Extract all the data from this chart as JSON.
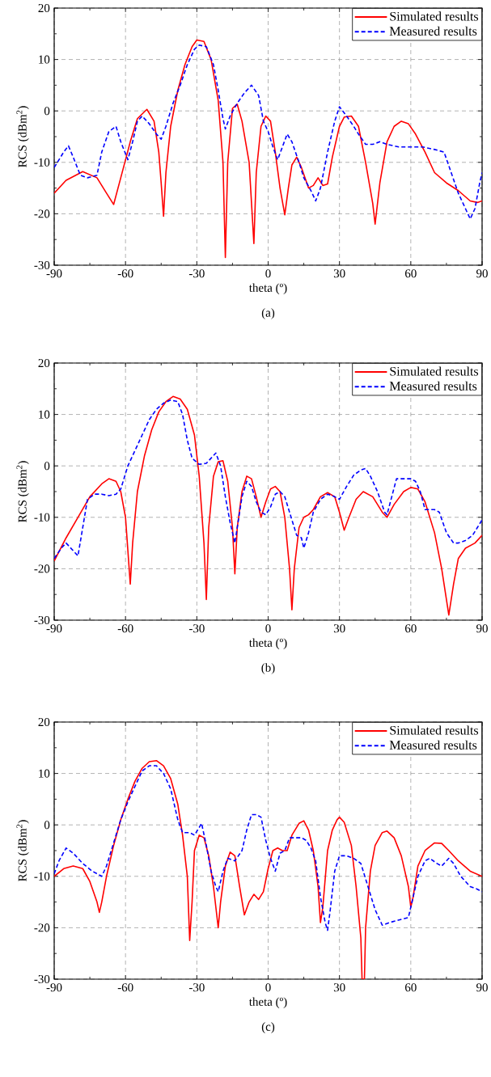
{
  "chart_data": [
    {
      "type": "line",
      "title": "(a)",
      "xlabel": "theta (º)",
      "ylabel": "RCS (dBm$^{2}$)",
      "xlim": [
        -90,
        90
      ],
      "ylim": [
        -30,
        20
      ],
      "xticks": [
        -90,
        -60,
        -30,
        0,
        30,
        60,
        90
      ],
      "yticks": [
        -30,
        -20,
        -10,
        0,
        10,
        20
      ],
      "grid": true,
      "legend": "top right",
      "series": [
        {
          "name": "Simulated results",
          "color": "#ff0000",
          "line_style": "solid",
          "x": [
            -90,
            -85,
            -78,
            -72,
            -68,
            -65,
            -62,
            -58,
            -55,
            -51,
            -48,
            -46,
            -45,
            -44,
            -43,
            -41,
            -38,
            -35,
            -32,
            -30,
            -27,
            -24,
            -21,
            -19,
            -18,
            -17,
            -15,
            -13,
            -11,
            -8,
            -6,
            -5,
            -3,
            -1,
            1,
            3,
            5,
            7,
            8.5,
            10,
            12,
            14,
            17,
            19,
            21,
            23,
            25,
            27,
            30,
            32,
            35,
            38,
            41,
            44,
            45,
            47,
            50,
            53,
            56,
            59,
            62,
            66,
            70,
            75,
            80,
            85,
            88,
            90
          ],
          "values": [
            -16,
            -13.5,
            -11.8,
            -13,
            -16,
            -18.2,
            -13,
            -6,
            -1.5,
            0.3,
            -2,
            -8,
            -14,
            -20.5,
            -12,
            -3,
            4,
            9,
            12.5,
            13.8,
            13.5,
            10,
            2,
            -10,
            -28.5,
            -10,
            0.5,
            1.3,
            -2,
            -10,
            -25.8,
            -12,
            -3,
            -1,
            -2,
            -8,
            -15,
            -20.2,
            -15,
            -10.5,
            -9,
            -11,
            -15,
            -14.5,
            -13,
            -14.5,
            -14.2,
            -9,
            -3,
            -1.2,
            -1,
            -3,
            -10,
            -18,
            -22,
            -14,
            -6,
            -3,
            -2,
            -2.5,
            -4.5,
            -8,
            -12,
            -14,
            -15.5,
            -17.5,
            -17.8,
            -17.5
          ]
        },
        {
          "name": "Measured results",
          "color": "#0000ff",
          "line_style": "dashed",
          "x": [
            -90,
            -86,
            -84,
            -82,
            -79,
            -76,
            -72,
            -70,
            -67,
            -64,
            -62,
            -59,
            -57,
            -55,
            -53,
            -50,
            -47,
            -45,
            -43,
            -40,
            -37,
            -34,
            -31,
            -29,
            -26,
            -23,
            -21,
            -19,
            -18,
            -16,
            -13,
            -10,
            -7,
            -4,
            -2,
            0,
            2,
            4,
            6,
            8,
            10,
            13,
            15,
            18,
            20,
            22,
            25,
            28,
            30,
            33,
            36,
            38,
            41,
            44,
            47,
            50,
            55,
            60,
            65,
            70,
            74,
            77,
            80,
            83,
            85,
            87,
            89,
            90
          ],
          "values": [
            -11,
            -8,
            -6.8,
            -9,
            -12.5,
            -13,
            -12.5,
            -8,
            -4,
            -3,
            -6,
            -9.5,
            -6,
            -2,
            -1,
            -2.5,
            -4.5,
            -5.5,
            -3,
            1.5,
            5,
            9,
            12,
            12.8,
            12.5,
            9,
            4,
            -1.5,
            -3.5,
            -1,
            1.5,
            3.5,
            5,
            3,
            -2,
            -4,
            -7,
            -9.5,
            -7,
            -4.5,
            -6,
            -10,
            -13,
            -15.5,
            -17.5,
            -15,
            -8,
            -2,
            0.8,
            -1,
            -3,
            -4.5,
            -6.5,
            -6.5,
            -6,
            -6.5,
            -7,
            -7,
            -7,
            -7.5,
            -8,
            -12,
            -16,
            -19,
            -21,
            -19,
            -14,
            -12
          ]
        }
      ]
    },
    {
      "type": "line",
      "title": "(b)",
      "xlabel": "theta (º)",
      "ylabel": "RCS (dBm$^{2}$)",
      "xlim": [
        -90,
        90
      ],
      "ylim": [
        -30,
        20
      ],
      "xticks": [
        -90,
        -60,
        -30,
        0,
        30,
        60,
        90
      ],
      "yticks": [
        -30,
        -20,
        -10,
        0,
        10,
        20
      ],
      "grid": true,
      "legend": "top right",
      "series": [
        {
          "name": "Simulated results",
          "color": "#ff0000",
          "line_style": "solid",
          "x": [
            -90,
            -85,
            -80,
            -75,
            -70,
            -67,
            -64,
            -62,
            -60,
            -58,
            -57,
            -55,
            -52,
            -49,
            -46,
            -43,
            -40,
            -37,
            -34,
            -31,
            -29,
            -27,
            -26,
            -25,
            -23,
            -21,
            -19,
            -17,
            -15,
            -14,
            -13,
            -11,
            -9,
            -7,
            -5,
            -3,
            -1,
            1,
            3,
            5,
            7,
            9,
            10,
            11,
            13,
            15,
            17,
            19,
            22,
            25,
            28,
            30,
            32,
            34,
            37,
            40,
            44,
            48,
            50,
            53,
            57,
            60,
            63,
            66,
            70,
            73,
            76,
            78,
            80,
            83,
            87,
            90
          ],
          "values": [
            -18.5,
            -14,
            -10,
            -6,
            -3.5,
            -2.5,
            -3,
            -5,
            -10,
            -23,
            -15,
            -5,
            2,
            7,
            10.5,
            12.5,
            13.5,
            13,
            11,
            6,
            -2,
            -15,
            -26,
            -12,
            -2,
            0.8,
            1,
            -3,
            -12,
            -21,
            -12,
            -5,
            -2,
            -2.5,
            -6,
            -10,
            -7,
            -4.5,
            -4,
            -5,
            -10,
            -20,
            -28,
            -20,
            -12,
            -10,
            -9.5,
            -8.5,
            -6,
            -5.2,
            -6,
            -9,
            -12.5,
            -10,
            -6.5,
            -5,
            -6,
            -9,
            -10,
            -7.5,
            -5,
            -4.2,
            -4.5,
            -7,
            -13,
            -20,
            -29,
            -23,
            -18,
            -16,
            -15,
            -13.5
          ]
        },
        {
          "name": "Measured results",
          "color": "#0000ff",
          "line_style": "dashed",
          "x": [
            -90,
            -87,
            -85,
            -82,
            -80,
            -78,
            -76,
            -73,
            -70,
            -67,
            -64,
            -62,
            -59,
            -56,
            -53,
            -50,
            -47,
            -44,
            -41,
            -38,
            -36,
            -34,
            -32,
            -29,
            -26,
            -24,
            -22,
            -20,
            -18,
            -16,
            -14,
            -13,
            -11,
            -9,
            -7,
            -5,
            -3,
            -1,
            1,
            3,
            5,
            7,
            9,
            12,
            14,
            15,
            17,
            19,
            22,
            25,
            28,
            30,
            33,
            36,
            39,
            41,
            43,
            46,
            49,
            50,
            52,
            54,
            57,
            60,
            62,
            64,
            66,
            70,
            72,
            75,
            78,
            80,
            83,
            86,
            88,
            90
          ],
          "values": [
            -18,
            -16,
            -15,
            -16.5,
            -17.5,
            -12,
            -6.5,
            -5.5,
            -5.5,
            -5.8,
            -5.5,
            -4.5,
            0,
            3,
            6,
            9,
            11,
            12.2,
            12.8,
            12.5,
            10,
            5,
            1.5,
            0.3,
            0.5,
            1.5,
            2.5,
            0,
            -6,
            -11,
            -15,
            -12,
            -6,
            -3,
            -4,
            -7,
            -9,
            -9.5,
            -8,
            -5.5,
            -5,
            -6,
            -9,
            -13.5,
            -14,
            -16,
            -13,
            -9,
            -6.5,
            -5.5,
            -6,
            -6.5,
            -4,
            -1.8,
            -0.8,
            -0.5,
            -2,
            -5,
            -9,
            -9.5,
            -6,
            -2.5,
            -2.5,
            -2.5,
            -3,
            -5,
            -8.5,
            -8.5,
            -9,
            -13,
            -15,
            -15,
            -14.5,
            -13.5,
            -12,
            -10.5
          ]
        }
      ]
    },
    {
      "type": "line",
      "title": "(c)",
      "xlabel": "theta (º)",
      "ylabel": "RCS (dBm$^{2}$)",
      "xlim": [
        -90,
        90
      ],
      "ylim": [
        -30,
        20
      ],
      "xticks": [
        -90,
        -60,
        -30,
        0,
        30,
        60,
        90
      ],
      "yticks": [
        -30,
        -20,
        -10,
        0,
        10,
        20
      ],
      "grid": true,
      "legend": "top right",
      "series": [
        {
          "name": "Simulated results",
          "color": "#ff0000",
          "line_style": "solid",
          "x": [
            -90,
            -86,
            -82,
            -78,
            -75,
            -72,
            -71,
            -70,
            -68,
            -65,
            -62,
            -59,
            -56,
            -53,
            -50,
            -47,
            -44,
            -41,
            -38,
            -36,
            -34,
            -33,
            -32,
            -31,
            -29,
            -27,
            -25,
            -23,
            -21,
            -20,
            -18,
            -16,
            -14,
            -12,
            -10,
            -8,
            -6,
            -4,
            -2,
            0,
            2,
            4,
            6,
            8,
            10,
            13,
            15,
            17,
            19,
            21,
            22,
            23,
            25,
            27,
            29,
            30,
            32,
            35,
            37,
            39,
            39.5,
            40.5,
            41,
            43,
            45,
            48,
            50,
            53,
            56,
            59,
            60,
            61,
            63,
            66,
            70,
            73,
            76,
            80,
            85,
            90
          ],
          "values": [
            -10,
            -8.5,
            -8,
            -8.5,
            -11,
            -15,
            -17,
            -15,
            -10,
            -4,
            1,
            5,
            8.5,
            11,
            12.3,
            12.5,
            11.5,
            9,
            4,
            -2,
            -10,
            -22.5,
            -15,
            -5,
            -2,
            -2.5,
            -6,
            -12,
            -20,
            -15,
            -8,
            -5.3,
            -6,
            -12,
            -17.5,
            -15,
            -13.5,
            -14.5,
            -13,
            -8.5,
            -5,
            -4.5,
            -5,
            -5,
            -2,
            0.3,
            0.8,
            -1,
            -5,
            -12,
            -19,
            -16,
            -5,
            -1,
            1,
            1.5,
            0.5,
            -4,
            -12,
            -22,
            -30,
            -30,
            -20,
            -9,
            -4,
            -1.5,
            -1.2,
            -2.5,
            -6,
            -12,
            -16,
            -14,
            -8,
            -5,
            -3.5,
            -3.6,
            -5,
            -7,
            -9,
            -10
          ]
        },
        {
          "name": "Measured results",
          "color": "#0000ff",
          "line_style": "dashed",
          "x": [
            -90,
            -88,
            -85,
            -82,
            -78,
            -74,
            -70,
            -68,
            -65,
            -62,
            -59,
            -56,
            -53,
            -50,
            -47,
            -44,
            -41,
            -38,
            -36,
            -33,
            -31,
            -29,
            -28,
            -26,
            -24,
            -22,
            -21,
            -19,
            -17,
            -14,
            -11,
            -9,
            -7,
            -5,
            -3,
            -1,
            1,
            3,
            5,
            7,
            9,
            12,
            14,
            16,
            18,
            20,
            22,
            24,
            25,
            26,
            28,
            30,
            33,
            36,
            39,
            42,
            45,
            48,
            51,
            55,
            59,
            61,
            63,
            66,
            68,
            71,
            73,
            76,
            78,
            81,
            85,
            88,
            90
          ],
          "values": [
            -9.5,
            -7,
            -4.5,
            -5.5,
            -7.5,
            -9,
            -10,
            -8,
            -3.5,
            1,
            4.5,
            7.5,
            10.5,
            11.5,
            11.5,
            10,
            7,
            1,
            -1.5,
            -1.5,
            -2,
            -0.5,
            0.3,
            -4,
            -9,
            -12,
            -13,
            -9,
            -6.5,
            -7,
            -5,
            -1,
            2,
            2,
            1.5,
            -3,
            -6.5,
            -9,
            -5.5,
            -5,
            -2.5,
            -2.5,
            -2.5,
            -3,
            -4.5,
            -7,
            -14,
            -19,
            -20.5,
            -17,
            -9,
            -6,
            -6,
            -6.5,
            -7.5,
            -12,
            -16.5,
            -19.5,
            -19,
            -18.5,
            -18,
            -14,
            -10,
            -7,
            -6.5,
            -7.5,
            -8,
            -6.5,
            -7.5,
            -10,
            -12,
            -12.5,
            -13
          ]
        }
      ]
    }
  ]
}
